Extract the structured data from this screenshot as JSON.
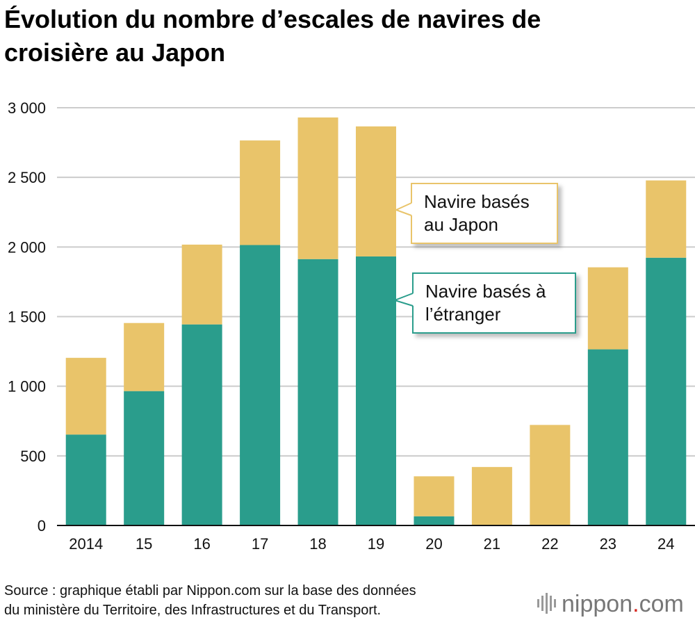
{
  "title_lines": [
    "Évolution du nombre d’escales de navires de",
    "croisière au Japon"
  ],
  "source_lines": [
    "Source : graphique établi par Nippon.com sur la base des données",
    "du ministère du Territoire, des Infrastructures et du Transport."
  ],
  "brand": {
    "name": "nippon",
    "dot": ".",
    "tld": "com"
  },
  "colors": {
    "foreign": "#2a9d8c",
    "japan": "#e9c46a",
    "grid": "#cccccc",
    "axis": "#111111"
  },
  "chart_data": {
    "type": "bar",
    "stacked": true,
    "categories": [
      "2014",
      "15",
      "16",
      "17",
      "18",
      "19",
      "20",
      "21",
      "22",
      "23",
      "24"
    ],
    "series": [
      {
        "name": "Navire basés à l’étranger",
        "color": "#2a9d8c",
        "values": [
          653,
          965,
          1444,
          2014,
          1913,
          1932,
          66,
          0,
          0,
          1265,
          1923
        ]
      },
      {
        "name": "Navire basés au Japon",
        "color": "#e9c46a",
        "values": [
          551,
          489,
          573,
          751,
          1017,
          934,
          287,
          420,
          722,
          589,
          555
        ]
      }
    ],
    "yticks": [
      "0",
      "500",
      "1 000",
      "1 500",
      "2 000",
      "2 500",
      "3 000"
    ],
    "ytick_values": [
      0,
      500,
      1000,
      1500,
      2000,
      2500,
      3000
    ],
    "ylim": [
      0,
      3000
    ],
    "grid": true,
    "legend": "callouts",
    "callouts": [
      {
        "lines": [
          "Navire basés",
          "au Japon"
        ],
        "series": 1,
        "border": "#e9c46a"
      },
      {
        "lines": [
          "Navire basés à",
          "l’étranger"
        ],
        "series": 0,
        "border": "#2a9d8c"
      }
    ]
  }
}
